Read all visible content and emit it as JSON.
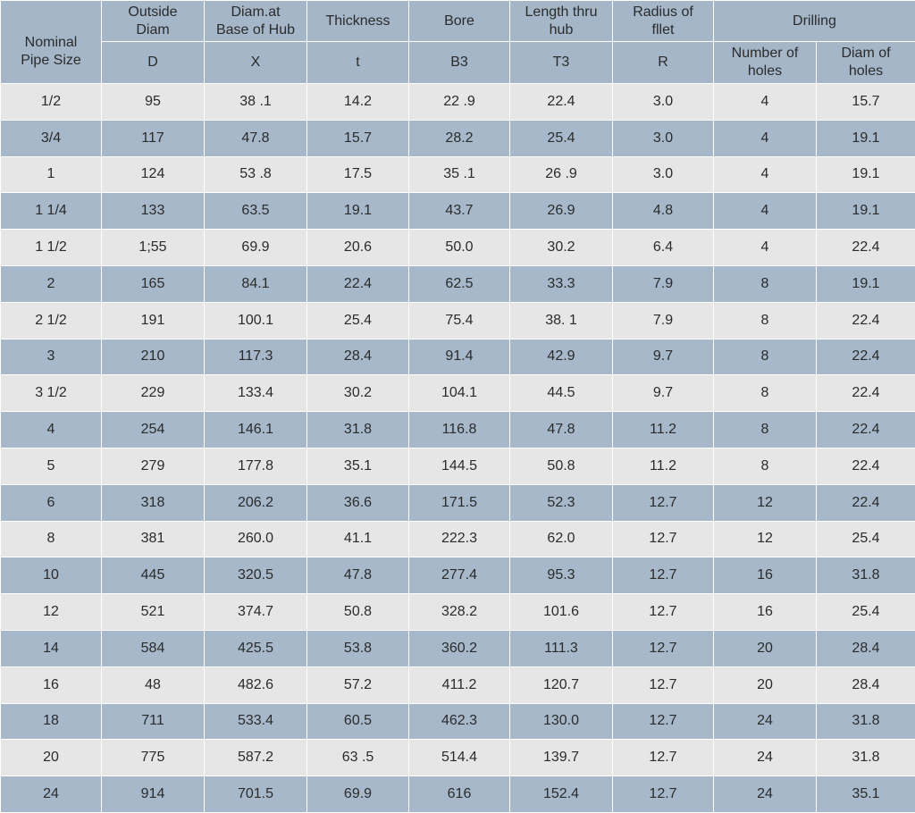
{
  "table": {
    "header_top": [
      "Nominal\nPipe Size",
      "Outside\nDiam",
      "Diam.at\nBase of Hub",
      "Thickness",
      "Bore",
      "Length  thru\nhub",
      "Radius of\nfllet",
      "Drilling"
    ],
    "header_sub": [
      "D",
      "X",
      "t",
      "B3",
      "T3",
      "R",
      "Number of\nholes",
      "Diam of\nholes"
    ],
    "rows": [
      [
        "1/2",
        "95",
        "38 .1",
        "14.2",
        "22 .9",
        "22.4",
        "3.0",
        "4",
        "15.7"
      ],
      [
        "3/4",
        "117",
        "47.8",
        "15.7",
        "28.2",
        "25.4",
        "3.0",
        "4",
        "19.1"
      ],
      [
        "1",
        "124",
        "53 .8",
        "17.5",
        "35 .1",
        "26 .9",
        "3.0",
        "4",
        "19.1"
      ],
      [
        "1 1/4",
        "133",
        "63.5",
        "19.1",
        "43.7",
        "26.9",
        "4.8",
        "4",
        "19.1"
      ],
      [
        "1 1/2",
        "1;55",
        "69.9",
        "20.6",
        "50.0",
        "30.2",
        "6.4",
        "4",
        "22.4"
      ],
      [
        "2",
        "165",
        "84.1",
        "22.4",
        "62.5",
        "33.3",
        "7.9",
        "8",
        "19.1"
      ],
      [
        "2 1/2",
        "191",
        "100.1",
        "25.4",
        "75.4",
        "38. 1",
        "7.9",
        "8",
        "22.4"
      ],
      [
        "3",
        "210",
        "117.3",
        "28.4",
        "91.4",
        "42.9",
        "9.7",
        "8",
        "22.4"
      ],
      [
        "3 1/2",
        "229",
        "133.4",
        "30.2",
        "104.1",
        "44.5",
        "9.7",
        "8",
        "22.4"
      ],
      [
        "4",
        "254",
        "146.1",
        "31.8",
        "116.8",
        "47.8",
        "11.2",
        "8",
        "22.4"
      ],
      [
        "5",
        "279",
        "177.8",
        "35.1",
        "144.5",
        "50.8",
        "11.2",
        "8",
        "22.4"
      ],
      [
        "6",
        "318",
        "206.2",
        "36.6",
        "171.5",
        "52.3",
        "12.7",
        "12",
        "22.4"
      ],
      [
        "8",
        "381",
        "260.0",
        "41.1",
        "222.3",
        "62.0",
        "12.7",
        "12",
        "25.4"
      ],
      [
        "10",
        "445",
        "320.5",
        "47.8",
        "277.4",
        "95.3",
        "12.7",
        "16",
        "31.8"
      ],
      [
        "12",
        "521",
        "374.7",
        "50.8",
        "328.2",
        "101.6",
        "12.7",
        "16",
        "25.4"
      ],
      [
        "14",
        "584",
        "425.5",
        "53.8",
        "360.2",
        "111.3",
        "12.7",
        "20",
        "28.4"
      ],
      [
        "16",
        "48",
        "482.6",
        "57.2",
        "411.2",
        "120.7",
        "12.7",
        "20",
        "28.4"
      ],
      [
        "18",
        "711",
        "533.4",
        "60.5",
        "462.3",
        "130.0",
        "12.7",
        "24",
        "31.8"
      ],
      [
        "20",
        "775",
        "587.2",
        "63 .5",
        "514.4",
        "139.7",
        "12.7",
        "24",
        "31.8"
      ],
      [
        "24",
        "914",
        "701.5",
        "69.9",
        "616",
        "152.4",
        "12.7",
        "24",
        "35.1"
      ]
    ]
  }
}
